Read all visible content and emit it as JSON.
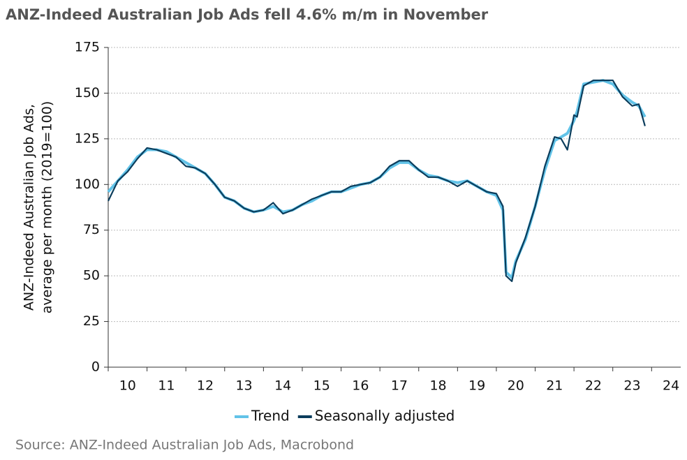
{
  "chart_data": {
    "type": "line",
    "title": "ANZ-Indeed Australian Job Ads fell 4.6% m/m in November",
    "y_label": [
      "ANZ-Indeed Australian Job Ads,",
      "average per month (2019=100)"
    ],
    "source": "Source: ANZ-Indeed Australian Job Ads, Macrobond",
    "x": [
      10,
      10.25,
      10.5,
      10.75,
      11,
      11.25,
      11.5,
      11.75,
      12,
      12.25,
      12.5,
      12.75,
      13,
      13.25,
      13.5,
      13.75,
      14,
      14.25,
      14.5,
      14.75,
      15,
      15.25,
      15.5,
      15.75,
      16,
      16.25,
      16.5,
      16.75,
      17,
      17.25,
      17.5,
      17.75,
      18,
      18.25,
      18.5,
      18.75,
      19,
      19.25,
      19.5,
      19.75,
      20,
      20.17,
      20.25,
      20.4,
      20.5,
      20.75,
      21,
      21.25,
      21.5,
      21.67,
      21.83,
      22,
      22.08,
      22.25,
      22.5,
      22.75,
      23,
      23.25,
      23.5,
      23.67,
      23.83
    ],
    "series": [
      {
        "name": "Trend",
        "color": "#62c3e8",
        "width": 4,
        "values": [
          96,
          102,
          108,
          115,
          119,
          119,
          118,
          115,
          112,
          109,
          106,
          100,
          93,
          91,
          87,
          85,
          86,
          88,
          85,
          86,
          89,
          91,
          94,
          96,
          96,
          98,
          100,
          101,
          104,
          109,
          112,
          112,
          108,
          105,
          104,
          102,
          101,
          102,
          99,
          96,
          94,
          86,
          52,
          49,
          58,
          70,
          88,
          108,
          124,
          126,
          128,
          135,
          140,
          155,
          156,
          157,
          155,
          149,
          145,
          143,
          137
        ]
      },
      {
        "name": "Seasonally adjusted",
        "color": "#0b3d5c",
        "width": 2.2,
        "values": [
          91,
          102,
          107,
          114,
          120,
          119,
          117,
          115,
          110,
          109,
          106,
          100,
          93,
          91,
          87,
          85,
          86,
          90,
          84,
          86,
          89,
          92,
          94,
          96,
          96,
          99,
          100,
          101,
          104,
          110,
          113,
          113,
          108,
          104,
          104,
          102,
          99,
          102,
          99,
          96,
          95,
          88,
          50,
          47,
          57,
          71,
          88,
          110,
          126,
          125,
          119,
          138,
          137,
          154,
          157,
          157,
          157,
          148,
          143,
          144,
          132
        ]
      }
    ],
    "xlim": [
      10,
      24.75
    ],
    "xticks": [
      10,
      11,
      12,
      13,
      14,
      15,
      16,
      17,
      18,
      19,
      20,
      21,
      22,
      23,
      24
    ],
    "ylim": [
      0,
      175
    ],
    "yticks": [
      0,
      25,
      50,
      75,
      100,
      125,
      150,
      175
    ],
    "grid": true
  }
}
